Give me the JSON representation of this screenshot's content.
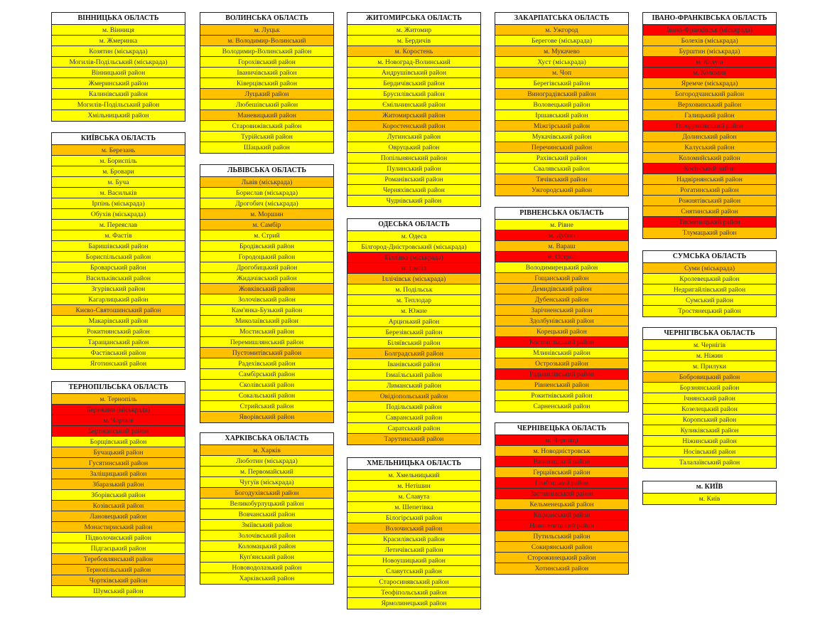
{
  "colors": {
    "y": "#FFFF00",
    "o": "#FFC000",
    "r": "#FF0000"
  },
  "tables": [
    {
      "title": "ВІННИЦЬКА ОБЛАСТЬ",
      "rows": [
        [
          "м. Вінниця",
          "y"
        ],
        [
          "м. Жмеринка",
          "y"
        ],
        [
          "Козятин (міськрада)",
          "y"
        ],
        [
          "Могилів-Подільський (міськрада)",
          "y"
        ],
        [
          "Вінницький район",
          "y"
        ],
        [
          "Жмеринський район",
          "y"
        ],
        [
          "Калинівський район",
          "y"
        ],
        [
          "Могилів-Подільський район",
          "y"
        ],
        [
          "Хмільницький район",
          "y"
        ]
      ]
    },
    {
      "title": "КИЇВСЬКА ОБЛАСТЬ",
      "rows": [
        [
          "м. Березань",
          "o"
        ],
        [
          "м. Бориспіль",
          "y"
        ],
        [
          "м. Бровари",
          "y"
        ],
        [
          "м. Буча",
          "y"
        ],
        [
          "м. Васильків",
          "y"
        ],
        [
          "Ірпінь (міськрада)",
          "y"
        ],
        [
          "Обухів (міськрада)",
          "y"
        ],
        [
          "м. Переяслав",
          "y"
        ],
        [
          "м. Фастів",
          "y"
        ],
        [
          "Баришівський район",
          "y"
        ],
        [
          "Бориспільський район",
          "y"
        ],
        [
          "Броварський район",
          "y"
        ],
        [
          "Васильківський район",
          "y"
        ],
        [
          "Згурівський район",
          "y"
        ],
        [
          "Кагарлицький район",
          "y"
        ],
        [
          "Києво-Святошинський район",
          "o"
        ],
        [
          "Макарівський район",
          "y"
        ],
        [
          "Рокитнянський район",
          "y"
        ],
        [
          "Таращанський район",
          "y"
        ],
        [
          "Фастівський район",
          "y"
        ],
        [
          "Яготинський район",
          "y"
        ]
      ]
    },
    {
      "title": "ТЕРНОПІЛЬСЬКА ОБЛАСТЬ",
      "rows": [
        [
          "м. Тернопіль",
          "o"
        ],
        [
          "Бережани (міськрада)",
          "r"
        ],
        [
          "м. Чортків",
          "r"
        ],
        [
          "Бережанський район",
          "r"
        ],
        [
          "Борщівський район",
          "y"
        ],
        [
          "Бучацький район",
          "o"
        ],
        [
          "Гусятинський район",
          "o"
        ],
        [
          "Заліщицький район",
          "o"
        ],
        [
          "Збаразький район",
          "o"
        ],
        [
          "Зборівський район",
          "y"
        ],
        [
          "Козівський район",
          "o"
        ],
        [
          "Лановецький район",
          "o"
        ],
        [
          "Монастириський район",
          "o"
        ],
        [
          "Підволочиський район",
          "y"
        ],
        [
          "Підгаєцький район",
          "y"
        ],
        [
          "Теребовлянський район",
          "o"
        ],
        [
          "Тернопільський район",
          "o"
        ],
        [
          "Чортківський район",
          "o"
        ],
        [
          "Шумський район",
          "y"
        ]
      ]
    },
    {
      "title": "ВОЛИНСЬКА ОБЛАСТЬ",
      "rows": [
        [
          "м. Луцьк",
          "o"
        ],
        [
          "м. Володимир-Волинський",
          "o"
        ],
        [
          "Володимир-Волинський район",
          "y"
        ],
        [
          "Горохівський район",
          "y"
        ],
        [
          "Іваничівський район",
          "y"
        ],
        [
          "Ківерцівський район",
          "y"
        ],
        [
          "Луцький район",
          "o"
        ],
        [
          "Любешівський район",
          "y"
        ],
        [
          "Маневицький район",
          "o"
        ],
        [
          "Старовижівський район",
          "y"
        ],
        [
          "Турійський район",
          "y"
        ],
        [
          "Шацький район",
          "y"
        ]
      ]
    },
    {
      "title": "ЛЬВІВСЬКА ОБЛАСТЬ",
      "rows": [
        [
          "Львів (міськрада)",
          "o"
        ],
        [
          "Борислав (міськрада)",
          "y"
        ],
        [
          "Дрогобич (міськрада)",
          "y"
        ],
        [
          "м. Моршин",
          "o"
        ],
        [
          "м. Самбір",
          "o"
        ],
        [
          "м. Стрий",
          "y"
        ],
        [
          "Бродівський район",
          "y"
        ],
        [
          "Городоцький район",
          "y"
        ],
        [
          "Дрогобицький район",
          "y"
        ],
        [
          "Жидачівський район",
          "y"
        ],
        [
          "Жовківський район",
          "o"
        ],
        [
          "Золочівський район",
          "y"
        ],
        [
          "Кам'янка-Бузький район",
          "y"
        ],
        [
          "Миколаївський район",
          "y"
        ],
        [
          "Мостиський район",
          "y"
        ],
        [
          "Перемишлянський район",
          "y"
        ],
        [
          "Пустомитівський район",
          "o"
        ],
        [
          "Радехівський район",
          "y"
        ],
        [
          "Самбірський район",
          "y"
        ],
        [
          "Сколівський район",
          "y"
        ],
        [
          "Сокальський район",
          "y"
        ],
        [
          "Стрийський район",
          "y"
        ],
        [
          "Яворівський район",
          "o"
        ]
      ]
    },
    {
      "title": "ХАРКІВСЬКА ОБЛАСТЬ",
      "rows": [
        [
          "м. Харків",
          "o"
        ],
        [
          "Люботин (міськрада)",
          "y"
        ],
        [
          "м. Первомайський",
          "y"
        ],
        [
          "Чугуїв (міськрада)",
          "y"
        ],
        [
          "Богодухівський район",
          "o"
        ],
        [
          "Великобурлуцький район",
          "y"
        ],
        [
          "Вовчанський район",
          "y"
        ],
        [
          "Зміївський район",
          "y"
        ],
        [
          "Золочівський район",
          "y"
        ],
        [
          "Коломацький район",
          "y"
        ],
        [
          "Куп'янський район",
          "y"
        ],
        [
          "Нововодолазький район",
          "y"
        ],
        [
          "Харківський район",
          "y"
        ]
      ]
    },
    {
      "title": "ЖИТОМИРСЬКА ОБЛАСТЬ",
      "rows": [
        [
          "м. Житомир",
          "y"
        ],
        [
          "м. Бердичів",
          "y"
        ],
        [
          "м. Коростень",
          "o"
        ],
        [
          "м. Новоград-Волинський",
          "y"
        ],
        [
          "Андрушівський район",
          "y"
        ],
        [
          "Бердичівський район",
          "y"
        ],
        [
          "Брусилівський район",
          "y"
        ],
        [
          "Ємільчинський район",
          "y"
        ],
        [
          "Житомирський район",
          "o"
        ],
        [
          "Коростенський район",
          "o"
        ],
        [
          "Лугинський район",
          "y"
        ],
        [
          "Овруцький район",
          "y"
        ],
        [
          "Попільнянський район",
          "y"
        ],
        [
          "Пулинський район",
          "y"
        ],
        [
          "Романівський  район",
          "y"
        ],
        [
          "Черняхівський район",
          "y"
        ],
        [
          "Чуднівський район",
          "y"
        ]
      ]
    },
    {
      "title": "ОДЕСЬКА ОБЛАСТЬ",
      "rows": [
        [
          "м. Одеса",
          "y"
        ],
        [
          "Білгород-Дністровський (міськрада)",
          "y"
        ],
        [
          "Біляївка (міськрада)",
          "r"
        ],
        [
          "м. Ізмаїл",
          "r"
        ],
        [
          "Іллічівськ (міськрада)",
          "o"
        ],
        [
          "м. Подільськ",
          "y"
        ],
        [
          "м. Теплодар",
          "y"
        ],
        [
          "м. Южне",
          "y"
        ],
        [
          "Арцизький район",
          "y"
        ],
        [
          "Березівський район",
          "y"
        ],
        [
          "Біляївський район",
          "y"
        ],
        [
          "Болградський район",
          "o"
        ],
        [
          "Іванівський район",
          "y"
        ],
        [
          "Ізмаїльський район",
          "y"
        ],
        [
          "Лиманський район",
          "y"
        ],
        [
          "Овідіопольський район",
          "o"
        ],
        [
          "Подільський район",
          "y"
        ],
        [
          "Савранський район",
          "y"
        ],
        [
          "Саратський район",
          "y"
        ],
        [
          "Тарутинський район",
          "o"
        ]
      ]
    },
    {
      "title": "ХМЕЛЬНИЦЬКА ОБЛАСТЬ",
      "rows": [
        [
          "м. Хмельницький",
          "y"
        ],
        [
          "м. Нетішин",
          "y"
        ],
        [
          "м. Славута",
          "y"
        ],
        [
          "м. Шепетівка",
          "y"
        ],
        [
          "Білогірський район",
          "y"
        ],
        [
          "Волочиський район",
          "o"
        ],
        [
          "Красилівський район",
          "y"
        ],
        [
          "Летичівський район",
          "y"
        ],
        [
          "Новоушицький  район",
          "y"
        ],
        [
          "Славутський район",
          "y"
        ],
        [
          "Старосинявський район",
          "y"
        ],
        [
          "Теофіпольський район",
          "y"
        ],
        [
          "Ярмолинецький район",
          "y"
        ]
      ]
    },
    {
      "title": "ЗАКАРПАТСЬКА ОБЛАСТЬ",
      "rows": [
        [
          "м. Ужгород",
          "o"
        ],
        [
          "Берегове (міськрада)",
          "y"
        ],
        [
          "м. Мукачево",
          "o"
        ],
        [
          "Хуст (міськрада)",
          "y"
        ],
        [
          "м. Чоп",
          "o"
        ],
        [
          "Берегівський район",
          "y"
        ],
        [
          "Виноградівський район",
          "o"
        ],
        [
          "Воловецький район",
          "y"
        ],
        [
          "Іршавський район",
          "y"
        ],
        [
          "Міжгірський район",
          "o"
        ],
        [
          "Мукачівський район",
          "y"
        ],
        [
          "Перечинський район",
          "o"
        ],
        [
          "Рахівський район",
          "y"
        ],
        [
          "Свалявський район",
          "y"
        ],
        [
          "Тячівський район",
          "o"
        ],
        [
          "Ужгородський район",
          "o"
        ]
      ]
    },
    {
      "title": "РІВНЕНСЬКА ОБЛАСТЬ",
      "rows": [
        [
          "м. Рівне",
          "y"
        ],
        [
          "м. Дубно",
          "r"
        ],
        [
          "м. Вараш",
          "o"
        ],
        [
          "м. Острог",
          "r"
        ],
        [
          "Володимирецький район",
          "y"
        ],
        [
          "Гощанський район",
          "o"
        ],
        [
          "Демидівський район",
          "o"
        ],
        [
          "Дубенський район",
          "o"
        ],
        [
          "Зарічненський район",
          "o"
        ],
        [
          "Здолбунівський район",
          "o"
        ],
        [
          "Корецький район",
          "o"
        ],
        [
          "Костопільський район",
          "r"
        ],
        [
          "Млинівський район",
          "y"
        ],
        [
          "Острозький район",
          "o"
        ],
        [
          "Радивилівський район",
          "r"
        ],
        [
          "Рівненський район",
          "o"
        ],
        [
          "Рокитнівський район",
          "y"
        ],
        [
          "Сарненський район",
          "y"
        ]
      ]
    },
    {
      "title": "ЧЕРНІВЕЦЬКА ОБЛАСТЬ",
      "rows": [
        [
          "м. Чернівці",
          "r"
        ],
        [
          "м. Новодністровськ",
          "o"
        ],
        [
          "Вижницький район",
          "r"
        ],
        [
          "Герцаївський район",
          "o"
        ],
        [
          "Глибоцький район",
          "r"
        ],
        [
          "Заставнівський район",
          "r"
        ],
        [
          "Кельменецький район",
          "o"
        ],
        [
          "Кіцманський район",
          "r"
        ],
        [
          "Новоселицький район",
          "r"
        ],
        [
          "Путильський район",
          "o"
        ],
        [
          "Сокирянський район",
          "o"
        ],
        [
          "Сторожинецький район",
          "o"
        ],
        [
          "Хотинський район",
          "o"
        ]
      ]
    },
    {
      "title": "ІВАНО-ФРАНКІВСЬКА ОБЛАСТЬ",
      "rows": [
        [
          "Івано-Франківськ (міськрада)",
          "r"
        ],
        [
          "Болехів (міськрада)",
          "o"
        ],
        [
          "Бурштин (міськрада)",
          "o"
        ],
        [
          "м. Калуш",
          "r"
        ],
        [
          "м. Коломия",
          "r"
        ],
        [
          "Яремче (міськрада)",
          "o"
        ],
        [
          "Богородчанський район",
          "o"
        ],
        [
          "Верховинський район",
          "o"
        ],
        [
          "Галицький район",
          "o"
        ],
        [
          "Городенківський район",
          "r"
        ],
        [
          "Долинський район",
          "o"
        ],
        [
          "Калуський район",
          "o"
        ],
        [
          "Коломийський район",
          "o"
        ],
        [
          "Косівський район",
          "r"
        ],
        [
          "Надвірнянський район",
          "o"
        ],
        [
          "Рогатинський район",
          "o"
        ],
        [
          "Рожнятівський район",
          "o"
        ],
        [
          "Снятинський район",
          "o"
        ],
        [
          "Тисменицький район",
          "r"
        ],
        [
          "Тлумацький район",
          "o"
        ]
      ]
    },
    {
      "title": "СУМСЬКА ОБЛАСТЬ",
      "rows": [
        [
          "Суми (міськрада)",
          "o"
        ],
        [
          "Кролевецький район",
          "y"
        ],
        [
          "Недригайлівський район",
          "y"
        ],
        [
          "Сумський район",
          "y"
        ],
        [
          "Тростянецький район",
          "y"
        ]
      ]
    },
    {
      "title": "ЧЕРНІГІВСЬКА ОБЛАСТЬ",
      "rows": [
        [
          "м. Чернігів",
          "y"
        ],
        [
          "м. Ніжин",
          "y"
        ],
        [
          "м. Прилуки",
          "y"
        ],
        [
          "Бобровицький район",
          "o"
        ],
        [
          "Борзнянський район",
          "y"
        ],
        [
          "Ічнянський район",
          "y"
        ],
        [
          "Козелецький район",
          "y"
        ],
        [
          "Коропський район",
          "y"
        ],
        [
          "Куликівський район",
          "y"
        ],
        [
          "Ніжинський район",
          "y"
        ],
        [
          "Носівський район",
          "y"
        ],
        [
          "Талалаївський район",
          "y"
        ]
      ]
    },
    {
      "title": "м. КИЇВ",
      "rows": [
        [
          "м. Київ",
          "y"
        ]
      ]
    }
  ]
}
